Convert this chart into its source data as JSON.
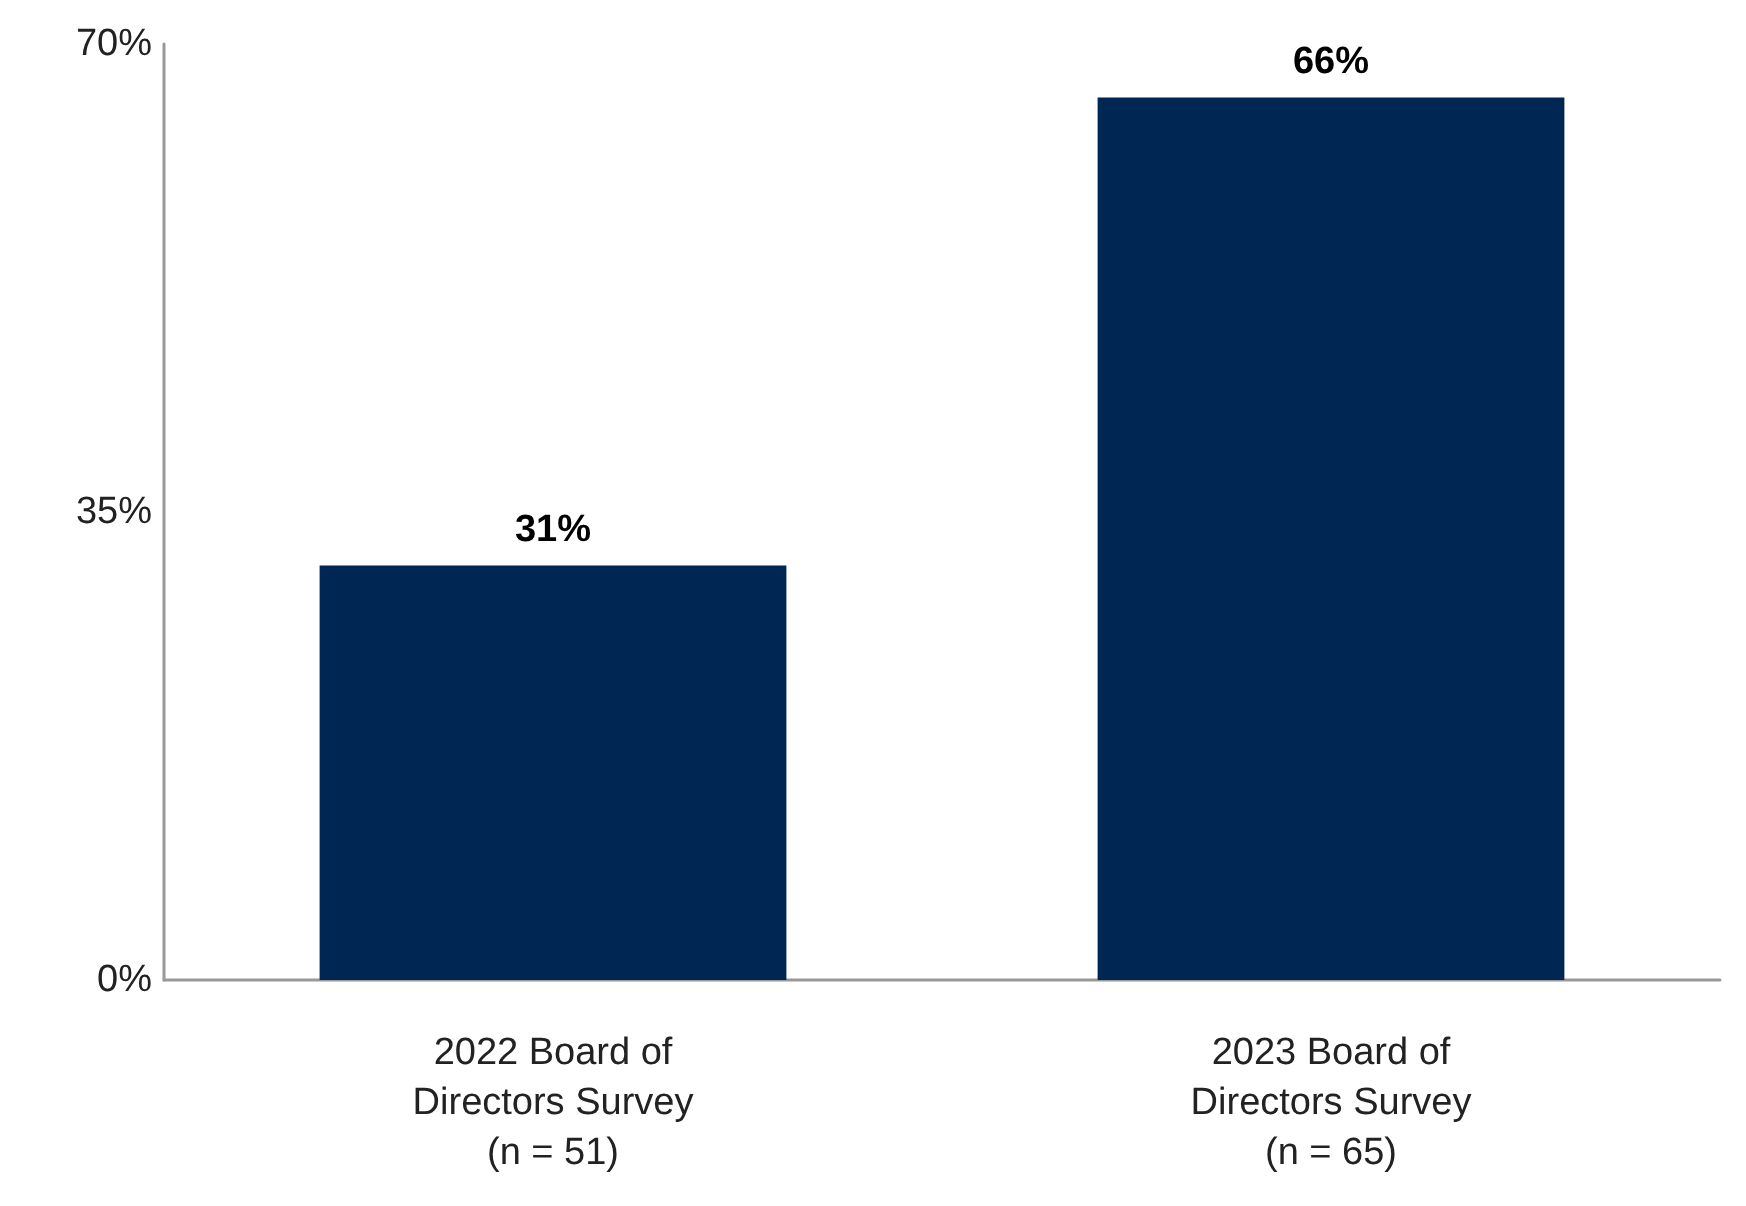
{
  "chart_data": {
    "type": "bar",
    "categories": [
      "2022 Board of\nDirectors Survey\n(n = 51)",
      "2023 Board of\nDirectors Survey\n(n = 65)"
    ],
    "values": [
      31,
      66
    ],
    "color": "#002653",
    "value_labels": [
      "31%",
      "66%"
    ],
    "ylim": [
      0,
      70
    ],
    "yticks": [
      {
        "value": 0,
        "label": "0%"
      },
      {
        "value": 35,
        "label": "35%"
      },
      {
        "value": 70,
        "label": "70%"
      }
    ],
    "grid": false
  }
}
